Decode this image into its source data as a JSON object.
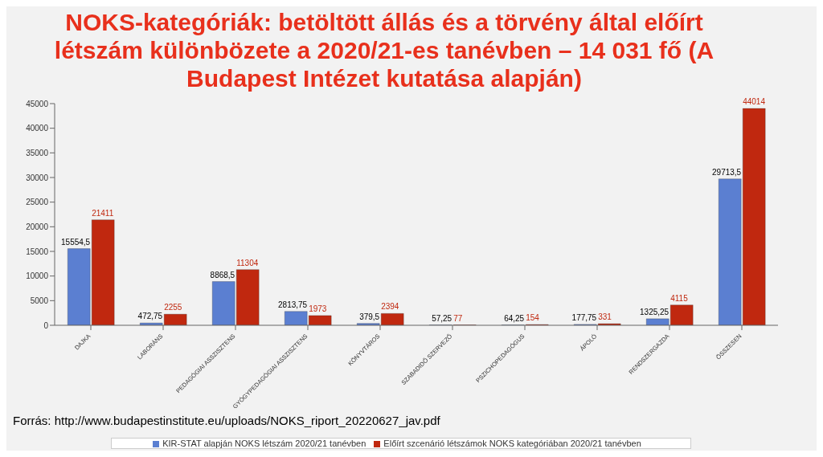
{
  "chart_data": {
    "type": "bar",
    "title": "NOKS-kategóriák: betöltött állás és a törvény által előírt létszám különbözete a 2020/21-es tanévben – 14 031 fő (A Budapest Intézet kutatása alapján)",
    "categories": [
      "DAJKA",
      "LABORÁNS",
      "PEDAGÓGIAI ASSZISZTENS",
      "GYÓGYPEDAGÓGIAI ASSZISZTENS",
      "KÖNYVTÁROS",
      "SZABADIDŐ SZERVEZŐ",
      "PSZICHOPEDAGÓGUS",
      "ÁPOLÓ",
      "RENDSZERGAZDA",
      "ÖSSZESEN"
    ],
    "series": [
      {
        "name": "KIR-STAT alapján NOKS létszám 2020/21 tanévben",
        "color": "#5b7fd1",
        "values": [
          15554.5,
          472.75,
          8868.5,
          2813.75,
          379.5,
          57.25,
          64.25,
          177.75,
          1325.25,
          29713.5
        ],
        "value_labels": [
          "15554,5",
          "472,75",
          "8868,5",
          "2813,75",
          "379,5",
          "57,25",
          "64,25",
          "177,75",
          "1325,25",
          "29713,5"
        ]
      },
      {
        "name": "Előírt szcenárió létszámok  NOKS kategóriában 2020/21 tanévben",
        "color": "#c0280f",
        "values": [
          21411,
          2255,
          11304,
          1973,
          2394,
          77,
          154,
          331,
          4115,
          44014
        ],
        "value_labels": [
          "21411",
          "2255",
          "11304",
          "1973",
          "2394",
          "77",
          "154",
          "331",
          "4115",
          "44014"
        ]
      }
    ],
    "ylim": [
      0,
      45000
    ],
    "yticks": [
      0,
      5000,
      10000,
      15000,
      20000,
      25000,
      30000,
      35000,
      40000,
      45000
    ],
    "grid": false,
    "legend": "bottom",
    "annotations": [
      "Forrás: http://www.budapestinstitute.eu/uploads/NOKS_riport_20220627_jav.pdf"
    ]
  }
}
